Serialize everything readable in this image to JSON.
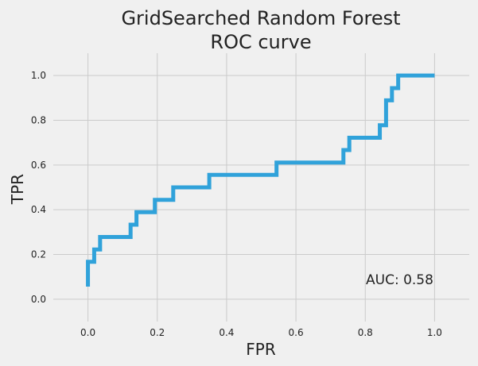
{
  "chart_data": {
    "type": "line",
    "title": "GridSearched Random Forest\nROC curve",
    "xlabel": "FPR",
    "ylabel": "TPR",
    "xlim": [
      -0.1,
      1.1
    ],
    "ylim": [
      -0.1,
      1.1
    ],
    "xticks": [
      0.0,
      0.2,
      0.4,
      0.6,
      0.8,
      1.0
    ],
    "yticks": [
      0.0,
      0.2,
      0.4,
      0.6,
      0.8,
      1.0
    ],
    "xtick_labels": [
      "0.0",
      "0.2",
      "0.4",
      "0.6",
      "0.8",
      "1.0"
    ],
    "ytick_labels": [
      "0.0",
      "0.2",
      "0.4",
      "0.6",
      "0.8",
      "1.0"
    ],
    "grid": true,
    "annotation": "AUC: 0.58",
    "line_color": "#30a2da",
    "background_color": "#f0f0f0",
    "grid_color": "#cbcbcb",
    "series": [
      {
        "x": [
          0.0,
          0.0,
          0.006,
          0.006,
          0.018,
          0.018,
          0.035,
          0.035,
          0.123,
          0.123,
          0.14,
          0.14,
          0.193,
          0.193,
          0.246,
          0.246,
          0.35,
          0.35,
          0.544,
          0.544,
          0.737,
          0.737,
          0.754,
          0.754,
          0.842,
          0.842,
          0.86,
          0.86,
          0.877,
          0.877,
          0.895,
          0.895,
          1.0
        ],
        "y": [
          0.056,
          0.167,
          0.167,
          0.167,
          0.167,
          0.222,
          0.222,
          0.278,
          0.278,
          0.333,
          0.333,
          0.389,
          0.389,
          0.444,
          0.444,
          0.5,
          0.5,
          0.556,
          0.556,
          0.611,
          0.611,
          0.667,
          0.667,
          0.722,
          0.722,
          0.778,
          0.778,
          0.889,
          0.889,
          0.944,
          0.944,
          1.0,
          1.0
        ]
      }
    ]
  }
}
